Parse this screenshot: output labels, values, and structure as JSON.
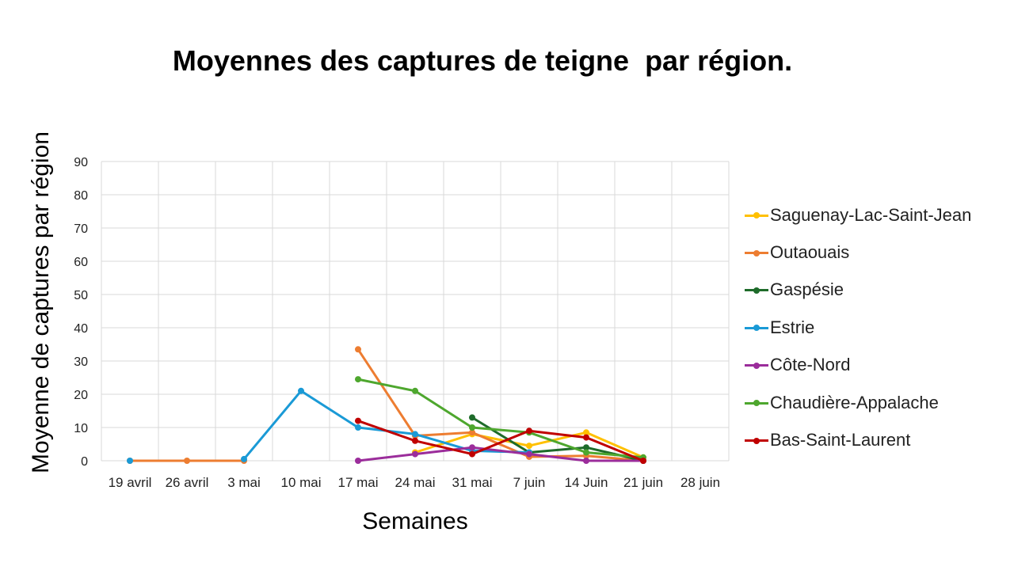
{
  "chart_data": {
    "type": "line",
    "title": "Moyennes des captures de teigne  par région.",
    "xlabel": "Semaines",
    "ylabel": "Moyenne de captures par région",
    "categories": [
      "19 avril",
      "26 avril",
      "3 mai",
      "10 mai",
      "17 mai",
      "24 mai",
      "31 mai",
      "7 juin",
      "14 Juin",
      "21 juin",
      "28 juin"
    ],
    "ylim": [
      0,
      90
    ],
    "yticks": [
      "0",
      "10",
      "20",
      "30",
      "40",
      "50",
      "60",
      "70",
      "80",
      "90"
    ],
    "grid": true,
    "legend_position": "right",
    "series": [
      {
        "name": "Saguenay-Lac-Saint-Jean",
        "color": "#FFC000",
        "values": [
          null,
          null,
          null,
          null,
          null,
          2.5,
          8,
          4.5,
          8.5,
          1,
          null
        ]
      },
      {
        "name": "Outaouais",
        "color": "#ED7D31",
        "values": [
          0,
          0,
          0,
          null,
          33.5,
          7.5,
          8.5,
          1.2,
          1.5,
          0,
          null
        ]
      },
      {
        "name": "Gaspésie",
        "color": "#1E6B2A",
        "values": [
          null,
          null,
          null,
          null,
          null,
          null,
          13,
          2.5,
          4,
          0,
          null
        ]
      },
      {
        "name": "Estrie",
        "color": "#1A9AD6",
        "values": [
          0,
          null,
          0.5,
          21,
          10,
          8,
          3,
          2.5,
          null,
          null,
          null
        ]
      },
      {
        "name": "Côte-Nord",
        "color": "#9B2D9B",
        "values": [
          null,
          null,
          null,
          null,
          0,
          2,
          4,
          2,
          0,
          0,
          null
        ]
      },
      {
        "name": "Chaudière-Appalache",
        "color": "#4EA72E",
        "values": [
          null,
          null,
          null,
          null,
          24.5,
          21,
          10,
          8.5,
          2.5,
          1,
          null
        ]
      },
      {
        "name": "Bas-Saint-Laurent",
        "color": "#C00000",
        "values": [
          null,
          null,
          null,
          null,
          12,
          6,
          2,
          9,
          7,
          0,
          null
        ]
      }
    ]
  }
}
